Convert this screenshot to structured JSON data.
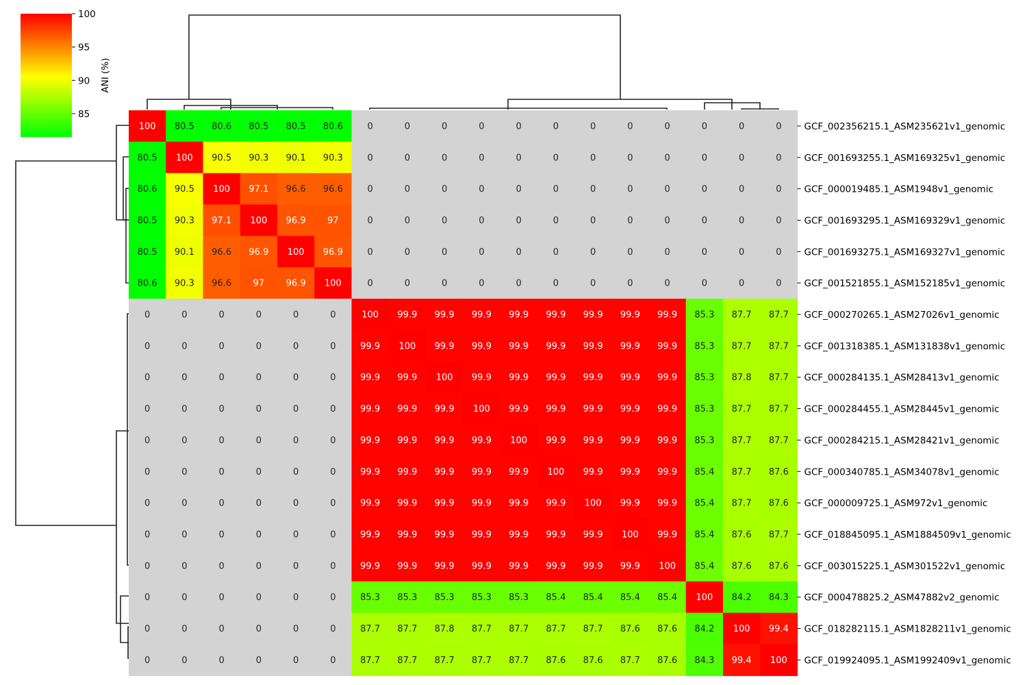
{
  "chart_data": {
    "type": "heatmap",
    "title": "",
    "colorbar": {
      "label": "ANI (%)",
      "range": [
        81.5,
        100
      ],
      "ticks": [
        85,
        90,
        95,
        100
      ],
      "colors": [
        "#00ff00",
        "#ffff00",
        "#ff0000"
      ]
    },
    "missing_color": "#d3d3d3",
    "row_labels": [
      "GCF_002356215.1_ASM235621v1_genomic",
      "GCF_001693255.1_ASM169325v1_genomic",
      "GCF_000019485.1_ASM1948v1_genomic",
      "GCF_001693295.1_ASM169329v1_genomic",
      "GCF_001693275.1_ASM169327v1_genomic",
      "GCF_001521855.1_ASM152185v1_genomic",
      "GCF_000270265.1_ASM27026v1_genomic",
      "GCF_001318385.1_ASM131838v1_genomic",
      "GCF_000284135.1_ASM28413v1_genomic",
      "GCF_000284455.1_ASM28445v1_genomic",
      "GCF_000284215.1_ASM28421v1_genomic",
      "GCF_000340785.1_ASM34078v1_genomic",
      "GCF_000009725.1_ASM972v1_genomic",
      "GCF_018845095.1_ASM1884509v1_genomic",
      "GCF_003015225.1_ASM301522v1_genomic",
      "GCF_000478825.2_ASM47882v2_genomic",
      "GCF_018282115.1_ASM1828211v1_genomic",
      "GCF_019924095.1_ASM1992409v1_genomic"
    ],
    "values": [
      [
        100,
        80.5,
        80.6,
        80.5,
        80.5,
        80.6,
        0,
        0,
        0,
        0,
        0,
        0,
        0,
        0,
        0,
        0,
        0,
        0
      ],
      [
        80.5,
        100,
        90.5,
        90.3,
        90.1,
        90.3,
        0,
        0,
        0,
        0,
        0,
        0,
        0,
        0,
        0,
        0,
        0,
        0
      ],
      [
        80.6,
        90.5,
        100,
        97.1,
        96.6,
        96.6,
        0,
        0,
        0,
        0,
        0,
        0,
        0,
        0,
        0,
        0,
        0,
        0
      ],
      [
        80.5,
        90.3,
        97.1,
        100,
        96.9,
        97,
        0,
        0,
        0,
        0,
        0,
        0,
        0,
        0,
        0,
        0,
        0,
        0
      ],
      [
        80.5,
        90.1,
        96.6,
        96.9,
        100,
        96.9,
        0,
        0,
        0,
        0,
        0,
        0,
        0,
        0,
        0,
        0,
        0,
        0
      ],
      [
        80.6,
        90.3,
        96.6,
        97,
        96.9,
        100,
        0,
        0,
        0,
        0,
        0,
        0,
        0,
        0,
        0,
        0,
        0,
        0
      ],
      [
        0,
        0,
        0,
        0,
        0,
        0,
        100,
        99.9,
        99.9,
        99.9,
        99.9,
        99.9,
        99.9,
        99.9,
        99.9,
        85.3,
        87.7,
        87.7
      ],
      [
        0,
        0,
        0,
        0,
        0,
        0,
        99.9,
        100,
        99.9,
        99.9,
        99.9,
        99.9,
        99.9,
        99.9,
        99.9,
        85.3,
        87.7,
        87.7
      ],
      [
        0,
        0,
        0,
        0,
        0,
        0,
        99.9,
        99.9,
        100,
        99.9,
        99.9,
        99.9,
        99.9,
        99.9,
        99.9,
        85.3,
        87.8,
        87.7
      ],
      [
        0,
        0,
        0,
        0,
        0,
        0,
        99.9,
        99.9,
        99.9,
        100,
        99.9,
        99.9,
        99.9,
        99.9,
        99.9,
        85.3,
        87.7,
        87.7
      ],
      [
        0,
        0,
        0,
        0,
        0,
        0,
        99.9,
        99.9,
        99.9,
        99.9,
        100,
        99.9,
        99.9,
        99.9,
        99.9,
        85.3,
        87.7,
        87.7
      ],
      [
        0,
        0,
        0,
        0,
        0,
        0,
        99.9,
        99.9,
        99.9,
        99.9,
        99.9,
        100,
        99.9,
        99.9,
        99.9,
        85.4,
        87.7,
        87.6
      ],
      [
        0,
        0,
        0,
        0,
        0,
        0,
        99.9,
        99.9,
        99.9,
        99.9,
        99.9,
        99.9,
        100,
        99.9,
        99.9,
        85.4,
        87.7,
        87.6
      ],
      [
        0,
        0,
        0,
        0,
        0,
        0,
        99.9,
        99.9,
        99.9,
        99.9,
        99.9,
        99.9,
        99.9,
        100,
        99.9,
        85.4,
        87.6,
        87.7
      ],
      [
        0,
        0,
        0,
        0,
        0,
        0,
        99.9,
        99.9,
        99.9,
        99.9,
        99.9,
        99.9,
        99.9,
        99.9,
        100,
        85.4,
        87.6,
        87.6
      ],
      [
        0,
        0,
        0,
        0,
        0,
        0,
        85.3,
        85.3,
        85.3,
        85.3,
        85.3,
        85.4,
        85.4,
        85.4,
        85.4,
        100,
        84.2,
        84.3
      ],
      [
        0,
        0,
        0,
        0,
        0,
        0,
        87.7,
        87.7,
        87.8,
        87.7,
        87.7,
        87.7,
        87.7,
        87.6,
        87.6,
        84.2,
        100,
        99.4
      ],
      [
        0,
        0,
        0,
        0,
        0,
        0,
        87.7,
        87.7,
        87.7,
        87.7,
        87.7,
        87.6,
        87.6,
        87.7,
        87.6,
        84.3,
        99.4,
        100
      ]
    ]
  }
}
